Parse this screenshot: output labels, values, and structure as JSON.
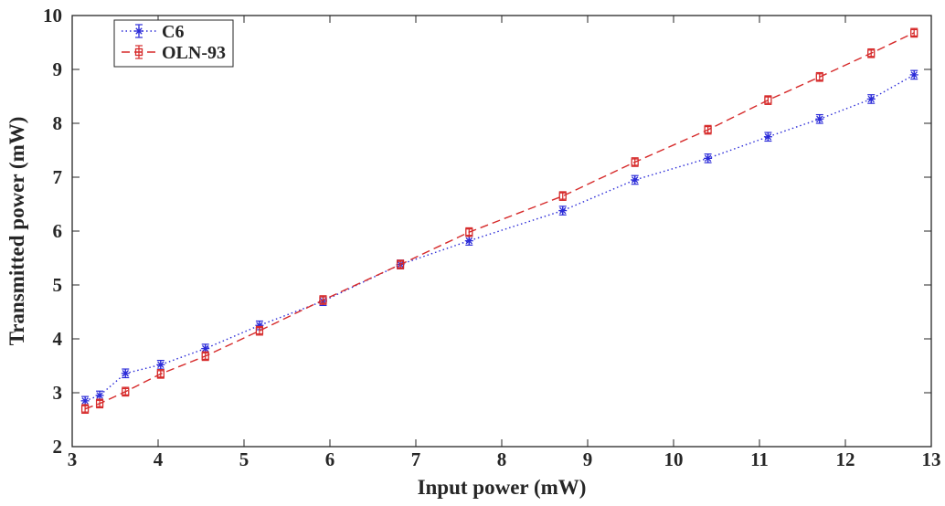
{
  "chart_data": {
    "type": "line",
    "title": "",
    "xlabel": "Input power (mW)",
    "ylabel": "Transmitted power (mW)",
    "xlim": [
      3,
      13
    ],
    "ylim": [
      2,
      10
    ],
    "xticks": [
      "3",
      "4",
      "5",
      "6",
      "7",
      "8",
      "9",
      "10",
      "11",
      "12",
      "13"
    ],
    "yticks": [
      "2",
      "3",
      "4",
      "5",
      "6",
      "7",
      "8",
      "9",
      "10"
    ],
    "grid": false,
    "legend_position": "top-left",
    "series": [
      {
        "name": "C6",
        "color": "#2b2bd8",
        "line_style": "dotted",
        "marker": "asterisk",
        "x": [
          3.15,
          3.32,
          3.62,
          4.03,
          4.55,
          5.18,
          5.92,
          6.82,
          7.62,
          8.71,
          9.55,
          10.4,
          11.1,
          11.7,
          12.3,
          12.8
        ],
        "y": [
          2.85,
          2.95,
          3.36,
          3.52,
          3.82,
          4.25,
          4.7,
          5.38,
          5.82,
          6.38,
          6.95,
          7.35,
          7.75,
          8.08,
          8.45,
          8.9
        ],
        "error": [
          0.08,
          0.08,
          0.08,
          0.08,
          0.08,
          0.08,
          0.08,
          0.08,
          0.08,
          0.08,
          0.08,
          0.08,
          0.08,
          0.08,
          0.08,
          0.08
        ]
      },
      {
        "name": "OLN-93",
        "color": "#d62a2a",
        "line_style": "dashed",
        "marker": "square",
        "x": [
          3.15,
          3.32,
          3.62,
          4.03,
          4.55,
          5.18,
          5.92,
          6.82,
          7.62,
          8.71,
          9.55,
          10.4,
          11.1,
          11.7,
          12.3,
          12.8
        ],
        "y": [
          2.7,
          2.8,
          3.02,
          3.35,
          3.68,
          4.15,
          4.72,
          5.38,
          5.98,
          6.65,
          7.28,
          7.88,
          8.43,
          8.86,
          9.3,
          9.68
        ],
        "error": [
          0.08,
          0.08,
          0.08,
          0.08,
          0.08,
          0.08,
          0.08,
          0.08,
          0.08,
          0.08,
          0.08,
          0.08,
          0.08,
          0.08,
          0.08,
          0.08
        ]
      }
    ]
  }
}
